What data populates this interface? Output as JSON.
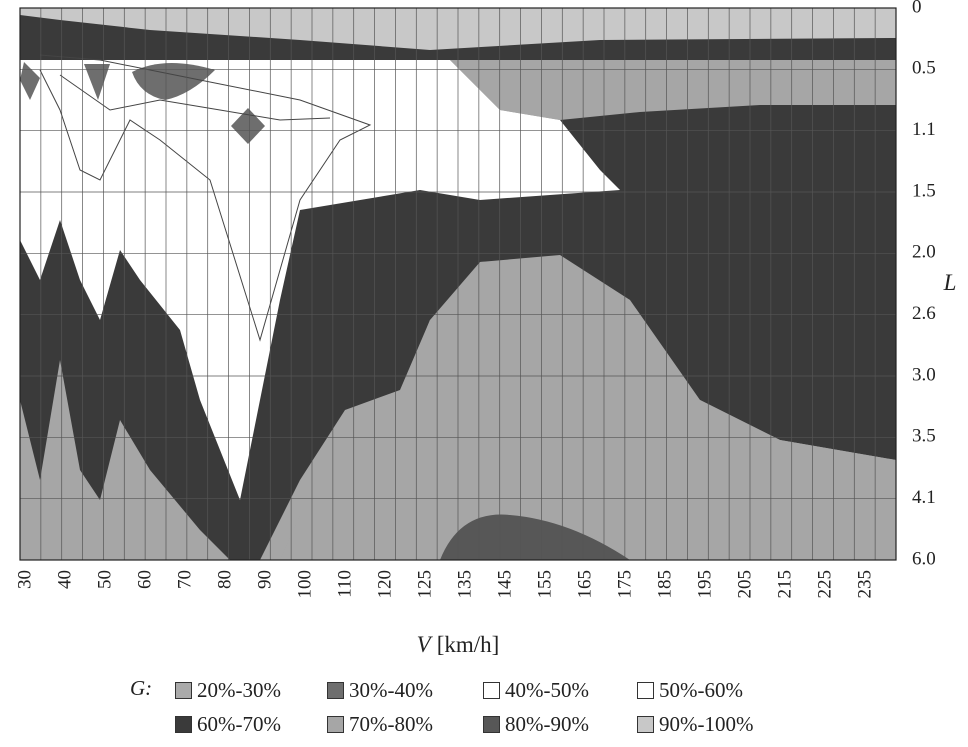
{
  "chart_data": {
    "type": "heatmap",
    "subtype": "filled-contour",
    "xlabel_var": "V",
    "xlabel_unit": "[km/h]",
    "ylabel": "L",
    "x_ticks": [
      "30",
      "40",
      "50",
      "60",
      "70",
      "80",
      "90",
      "100",
      "110",
      "120",
      "125",
      "135",
      "145",
      "155",
      "165",
      "175",
      "185",
      "195",
      "205",
      "215",
      "225",
      "235"
    ],
    "y_ticks": [
      "0",
      "0.5",
      "1.1",
      "1.5",
      "2.0",
      "2.6",
      "3.0",
      "3.5",
      "4.1",
      "6.0"
    ],
    "x_range": [
      "30",
      "240"
    ],
    "y_range": [
      0,
      6.0
    ],
    "grid": true,
    "colorbar_label": "G:",
    "legend_position": "bottom",
    "levels": [
      {
        "name": "20%-30%",
        "color": "#aaaaaa"
      },
      {
        "name": "30%-40%",
        "color": "#6e6e6e"
      },
      {
        "name": "40%-50%",
        "color": "#ffffff"
      },
      {
        "name": "50%-60%",
        "color": "#ffffff"
      },
      {
        "name": "60%-70%",
        "color": "#3a3a3a"
      },
      {
        "name": "70%-80%",
        "color": "#a6a6a6"
      },
      {
        "name": "80%-90%",
        "color": "#575757"
      },
      {
        "name": "90%-100%",
        "color": "#c8c8c8"
      }
    ],
    "regions": [
      {
        "level": "90%-100%",
        "description": "thin band along L = 0 across all V"
      },
      {
        "level": "60%-70%",
        "description": "band near L 0.3–0.9 for V ≥ 130, ridge reaching L ≈ 1.1 at V ≈ 155; large region from V ≈ 95 rising to L ≈ 1.5 at V ≈ 150, down to L ≈ 3.6 at V = 240; lobes near V 30–60 at L 2–4"
      },
      {
        "level": "40%-50%",
        "description": "large region V 30–125, L 0.3–2.0, dipping down to L ≈ 4.1 at V ≈ 85"
      },
      {
        "level": "70%-80%",
        "description": "lower region V ≥ 60, L ≥ 2.0 (dome under the 60%-70% band) and bottom of plot"
      },
      {
        "level": "80%-90%",
        "description": "small lens near V 135–170, L ≈ 4.6–6.0"
      },
      {
        "level": "30%-40%",
        "description": "small patches near L ≈ 0.5 at V ≈ 30, 50, 65–75 and diamond at V ≈ 85, L ≈ 1.0"
      }
    ]
  }
}
